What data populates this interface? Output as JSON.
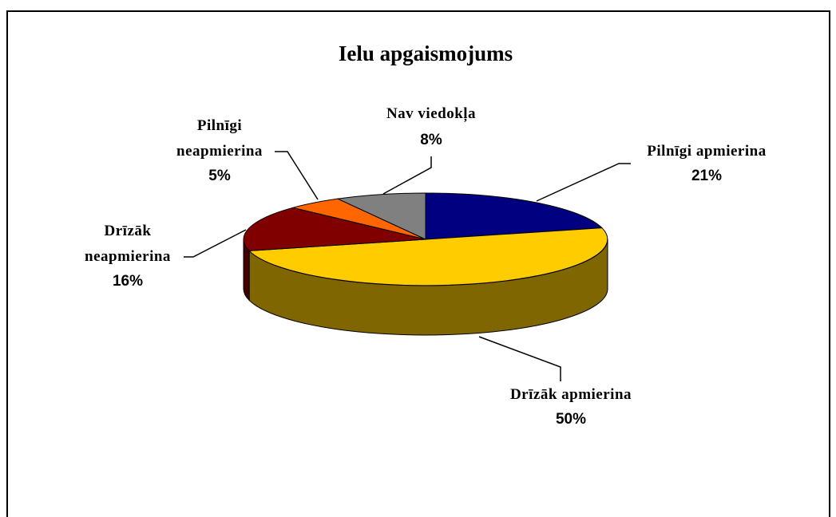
{
  "chart_data": {
    "type": "pie3d",
    "title": "Ielu apgaismojums",
    "categories": [
      "Pilnīgi apmierina",
      "Drīzāk apmierina",
      "Drīzāk neapmierina",
      "Pilnīgi neapmierina",
      "Nav viedokļa"
    ],
    "values": [
      21,
      50,
      16,
      5,
      8
    ],
    "value_labels": [
      "21%",
      "50%",
      "16%",
      "5%",
      "8%"
    ],
    "colors": [
      "#000080",
      "#ffcc00",
      "#800000",
      "#ff6600",
      "#808080"
    ]
  }
}
